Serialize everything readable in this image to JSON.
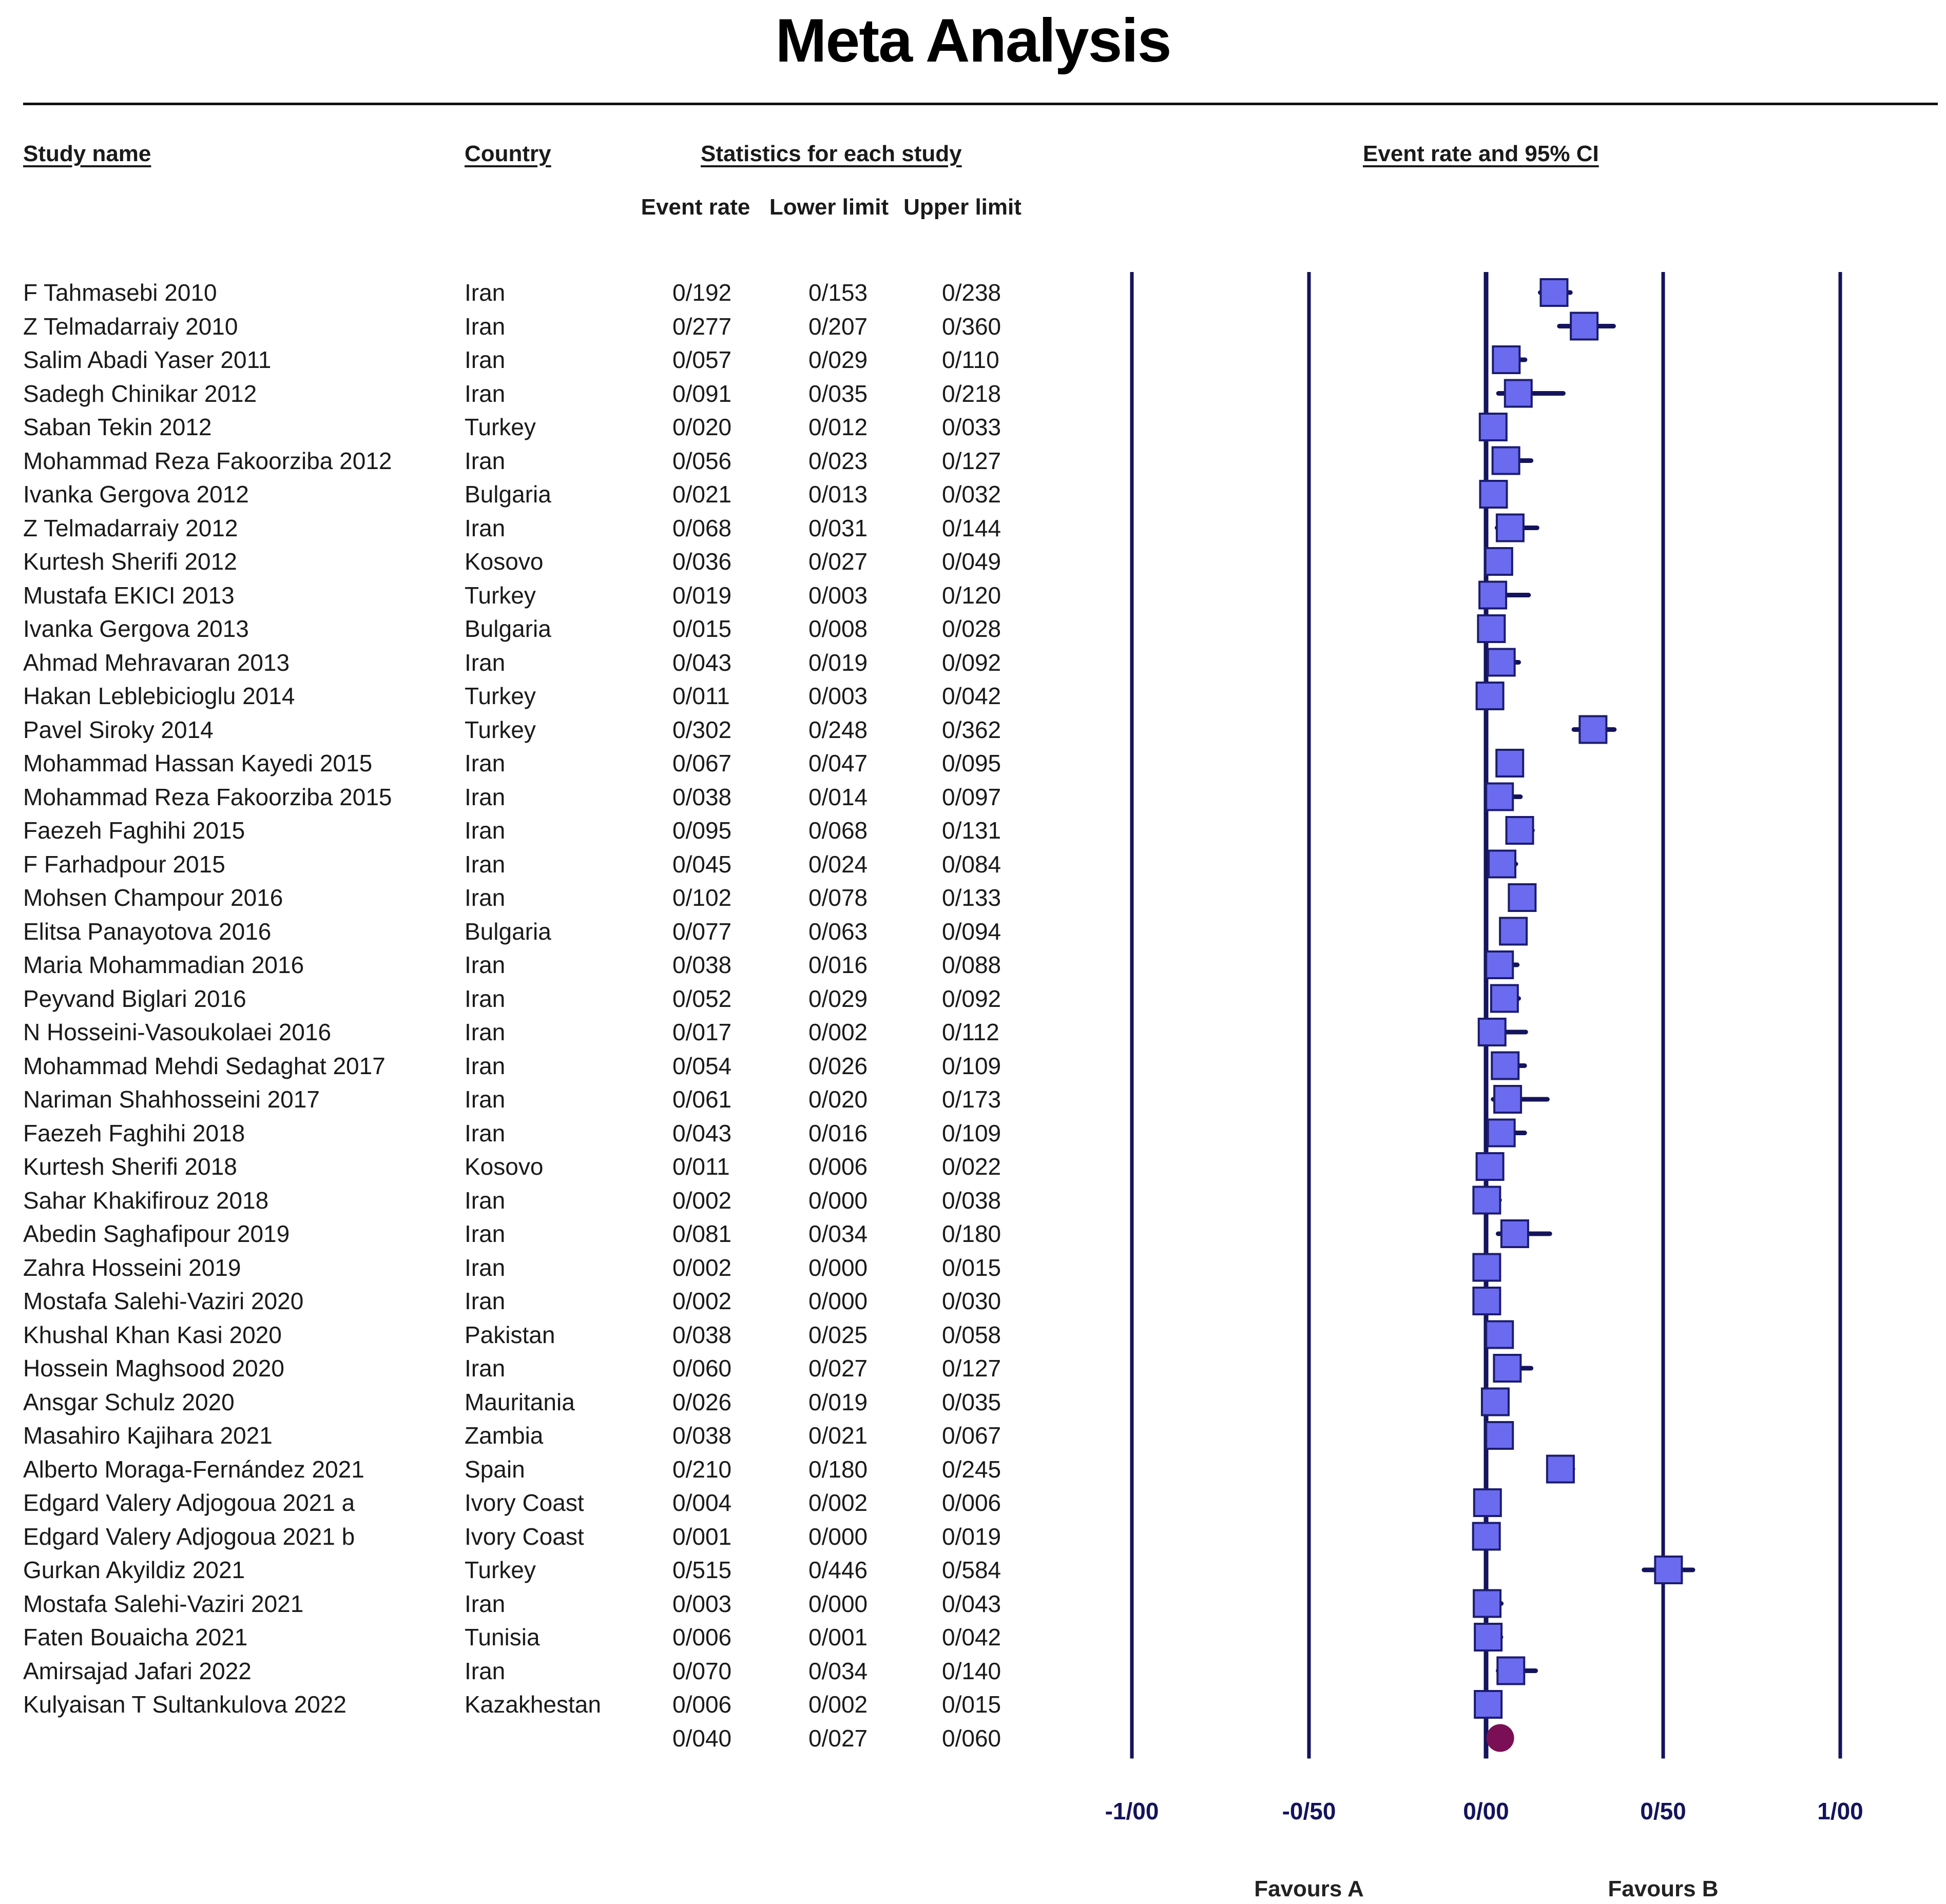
{
  "title": "Meta Analysis",
  "headers": {
    "study": "Study name",
    "country": "Country",
    "stats": "Statistics for each study",
    "plot": "Event rate and 95% CI",
    "event_rate": "Event rate",
    "lower_limit": "Lower limit",
    "upper_limit": "Upper limit"
  },
  "rows": [
    {
      "study": "F Tahmasebi 2010",
      "country": "Iran",
      "rate": "0/192",
      "lower": "0/153",
      "upper": "0/238"
    },
    {
      "study": "Z Telmadarraiy 2010",
      "country": "Iran",
      "rate": "0/277",
      "lower": "0/207",
      "upper": "0/360"
    },
    {
      "study": "Salim Abadi Yaser 2011",
      "country": "Iran",
      "rate": "0/057",
      "lower": "0/029",
      "upper": "0/110"
    },
    {
      "study": "Sadegh Chinikar 2012",
      "country": "Iran",
      "rate": "0/091",
      "lower": "0/035",
      "upper": "0/218"
    },
    {
      "study": "Saban Tekin 2012",
      "country": "Turkey",
      "rate": "0/020",
      "lower": "0/012",
      "upper": "0/033"
    },
    {
      "study": "Mohammad Reza Fakoorziba 2012",
      "country": "Iran",
      "rate": "0/056",
      "lower": "0/023",
      "upper": "0/127"
    },
    {
      "study": "Ivanka Gergova 2012",
      "country": "Bulgaria",
      "rate": "0/021",
      "lower": "0/013",
      "upper": "0/032"
    },
    {
      "study": "Z Telmadarraiy 2012",
      "country": "Iran",
      "rate": "0/068",
      "lower": "0/031",
      "upper": "0/144"
    },
    {
      "study": "Kurtesh Sherifi 2012",
      "country": "Kosovo",
      "rate": "0/036",
      "lower": "0/027",
      "upper": "0/049"
    },
    {
      "study": "Mustafa EKICI 2013",
      "country": "Turkey",
      "rate": "0/019",
      "lower": "0/003",
      "upper": "0/120"
    },
    {
      "study": "Ivanka Gergova 2013",
      "country": "Bulgaria",
      "rate": "0/015",
      "lower": "0/008",
      "upper": "0/028"
    },
    {
      "study": "Ahmad Mehravaran 2013",
      "country": "Iran",
      "rate": "0/043",
      "lower": "0/019",
      "upper": "0/092"
    },
    {
      "study": "Hakan Leblebicioglu 2014",
      "country": "Turkey",
      "rate": "0/011",
      "lower": "0/003",
      "upper": "0/042"
    },
    {
      "study": "Pavel Siroky 2014",
      "country": "Turkey",
      "rate": "0/302",
      "lower": "0/248",
      "upper": "0/362"
    },
    {
      "study": "Mohammad Hassan Kayedi 2015",
      "country": "Iran",
      "rate": "0/067",
      "lower": "0/047",
      "upper": "0/095"
    },
    {
      "study": "Mohammad Reza Fakoorziba 2015",
      "country": "Iran",
      "rate": "0/038",
      "lower": "0/014",
      "upper": "0/097"
    },
    {
      "study": "Faezeh Faghihi 2015",
      "country": "Iran",
      "rate": "0/095",
      "lower": "0/068",
      "upper": "0/131"
    },
    {
      "study": "F Farhadpour 2015",
      "country": "Iran",
      "rate": "0/045",
      "lower": "0/024",
      "upper": "0/084"
    },
    {
      "study": "Mohsen Champour 2016",
      "country": "Iran",
      "rate": "0/102",
      "lower": "0/078",
      "upper": "0/133"
    },
    {
      "study": "Elitsa Panayotova 2016",
      "country": "Bulgaria",
      "rate": "0/077",
      "lower": "0/063",
      "upper": "0/094"
    },
    {
      "study": "Maria Mohammadian 2016",
      "country": "Iran",
      "rate": "0/038",
      "lower": "0/016",
      "upper": "0/088"
    },
    {
      "study": "Peyvand Biglari 2016",
      "country": "Iran",
      "rate": "0/052",
      "lower": "0/029",
      "upper": "0/092"
    },
    {
      "study": "N Hosseini-Vasoukolaei 2016",
      "country": "Iran",
      "rate": "0/017",
      "lower": "0/002",
      "upper": "0/112"
    },
    {
      "study": "Mohammad Mehdi Sedaghat 2017",
      "country": "Iran",
      "rate": "0/054",
      "lower": "0/026",
      "upper": "0/109"
    },
    {
      "study": "Nariman Shahhosseini 2017",
      "country": "Iran",
      "rate": "0/061",
      "lower": "0/020",
      "upper": "0/173"
    },
    {
      "study": "Faezeh Faghihi 2018",
      "country": "Iran",
      "rate": "0/043",
      "lower": "0/016",
      "upper": "0/109"
    },
    {
      "study": "Kurtesh Sherifi 2018",
      "country": "Kosovo",
      "rate": "0/011",
      "lower": "0/006",
      "upper": "0/022"
    },
    {
      "study": "Sahar Khakifirouz 2018",
      "country": "Iran",
      "rate": "0/002",
      "lower": "0/000",
      "upper": "0/038"
    },
    {
      "study": "Abedin Saghafipour 2019",
      "country": "Iran",
      "rate": "0/081",
      "lower": "0/034",
      "upper": "0/180"
    },
    {
      "study": "Zahra Hosseini 2019",
      "country": "Iran",
      "rate": "0/002",
      "lower": "0/000",
      "upper": "0/015"
    },
    {
      "study": "Mostafa Salehi-Vaziri 2020",
      "country": "Iran",
      "rate": "0/002",
      "lower": "0/000",
      "upper": "0/030"
    },
    {
      "study": "Khushal Khan Kasi 2020",
      "country": "Pakistan",
      "rate": "0/038",
      "lower": "0/025",
      "upper": "0/058"
    },
    {
      "study": "Hossein Maghsood 2020",
      "country": "Iran",
      "rate": "0/060",
      "lower": "0/027",
      "upper": "0/127"
    },
    {
      "study": "Ansgar Schulz 2020",
      "country": "Mauritania",
      "rate": "0/026",
      "lower": "0/019",
      "upper": "0/035"
    },
    {
      "study": "Masahiro Kajihara 2021",
      "country": "Zambia",
      "rate": "0/038",
      "lower": "0/021",
      "upper": "0/067"
    },
    {
      "study": "Alberto Moraga-Fernández 2021",
      "country": "Spain",
      "rate": "0/210",
      "lower": "0/180",
      "upper": "0/245"
    },
    {
      "study": "Edgard Valery Adjogoua 2021 a",
      "country": "Ivory Coast",
      "rate": "0/004",
      "lower": "0/002",
      "upper": "0/006"
    },
    {
      "study": "Edgard Valery Adjogoua 2021 b",
      "country": "Ivory Coast",
      "rate": "0/001",
      "lower": "0/000",
      "upper": "0/019"
    },
    {
      "study": "Gurkan Akyildiz 2021",
      "country": "Turkey",
      "rate": "0/515",
      "lower": "0/446",
      "upper": "0/584"
    },
    {
      "study": "Mostafa Salehi-Vaziri 2021",
      "country": "Iran",
      "rate": "0/003",
      "lower": "0/000",
      "upper": "0/043"
    },
    {
      "study": "Faten Bouaicha 2021",
      "country": "Tunisia",
      "rate": "0/006",
      "lower": "0/001",
      "upper": "0/042"
    },
    {
      "study": "Amirsajad Jafari 2022",
      "country": "Iran",
      "rate": "0/070",
      "lower": "0/034",
      "upper": "0/140"
    },
    {
      "study": "Kulyaisan T Sultankulova 2022",
      "country": "Kazakhestan",
      "rate": "0/006",
      "lower": "0/002",
      "upper": "0/015"
    }
  ],
  "pooled": {
    "rate": "0/040",
    "lower": "0/027",
    "upper": "0/060"
  },
  "axis": {
    "ticks": [
      "-1/00",
      "-0/50",
      "0/00",
      "0/50",
      "1/00"
    ],
    "favours_a": "Favours A",
    "favours_b": "Favours B"
  },
  "colors": {
    "line": "#14145c",
    "box": "#6b6bf0",
    "box_border": "#1c1c6e",
    "pooled": "#7a0f55"
  },
  "chart_data": {
    "type": "forest",
    "title": "Meta Analysis",
    "xlabel": "Event rate and 95% CI",
    "xlim": [
      -1.0,
      1.0
    ],
    "xticks": [
      -1.0,
      -0.5,
      0.0,
      0.5,
      1.0
    ],
    "studies": [
      {
        "name": "F Tahmasebi 2010",
        "rate": 0.192,
        "lower": 0.153,
        "upper": 0.238
      },
      {
        "name": "Z Telmadarraiy 2010",
        "rate": 0.277,
        "lower": 0.207,
        "upper": 0.36
      },
      {
        "name": "Salim Abadi Yaser 2011",
        "rate": 0.057,
        "lower": 0.029,
        "upper": 0.11
      },
      {
        "name": "Sadegh Chinikar 2012",
        "rate": 0.091,
        "lower": 0.035,
        "upper": 0.218
      },
      {
        "name": "Saban Tekin 2012",
        "rate": 0.02,
        "lower": 0.012,
        "upper": 0.033
      },
      {
        "name": "Mohammad Reza Fakoorziba 2012",
        "rate": 0.056,
        "lower": 0.023,
        "upper": 0.127
      },
      {
        "name": "Ivanka Gergova 2012",
        "rate": 0.021,
        "lower": 0.013,
        "upper": 0.032
      },
      {
        "name": "Z Telmadarraiy 2012",
        "rate": 0.068,
        "lower": 0.031,
        "upper": 0.144
      },
      {
        "name": "Kurtesh Sherifi 2012",
        "rate": 0.036,
        "lower": 0.027,
        "upper": 0.049
      },
      {
        "name": "Mustafa EKICI 2013",
        "rate": 0.019,
        "lower": 0.003,
        "upper": 0.12
      },
      {
        "name": "Ivanka Gergova 2013",
        "rate": 0.015,
        "lower": 0.008,
        "upper": 0.028
      },
      {
        "name": "Ahmad Mehravaran 2013",
        "rate": 0.043,
        "lower": 0.019,
        "upper": 0.092
      },
      {
        "name": "Hakan Leblebicioglu 2014",
        "rate": 0.011,
        "lower": 0.003,
        "upper": 0.042
      },
      {
        "name": "Pavel Siroky 2014",
        "rate": 0.302,
        "lower": 0.248,
        "upper": 0.362
      },
      {
        "name": "Mohammad Hassan Kayedi 2015",
        "rate": 0.067,
        "lower": 0.047,
        "upper": 0.095
      },
      {
        "name": "Mohammad Reza Fakoorziba 2015",
        "rate": 0.038,
        "lower": 0.014,
        "upper": 0.097
      },
      {
        "name": "Faezeh Faghihi 2015",
        "rate": 0.095,
        "lower": 0.068,
        "upper": 0.131
      },
      {
        "name": "F Farhadpour 2015",
        "rate": 0.045,
        "lower": 0.024,
        "upper": 0.084
      },
      {
        "name": "Mohsen Champour 2016",
        "rate": 0.102,
        "lower": 0.078,
        "upper": 0.133
      },
      {
        "name": "Elitsa Panayotova 2016",
        "rate": 0.077,
        "lower": 0.063,
        "upper": 0.094
      },
      {
        "name": "Maria Mohammadian 2016",
        "rate": 0.038,
        "lower": 0.016,
        "upper": 0.088
      },
      {
        "name": "Peyvand Biglari 2016",
        "rate": 0.052,
        "lower": 0.029,
        "upper": 0.092
      },
      {
        "name": "N Hosseini-Vasoukolaei 2016",
        "rate": 0.017,
        "lower": 0.002,
        "upper": 0.112
      },
      {
        "name": "Mohammad Mehdi Sedaghat 2017",
        "rate": 0.054,
        "lower": 0.026,
        "upper": 0.109
      },
      {
        "name": "Nariman Shahhosseini 2017",
        "rate": 0.061,
        "lower": 0.02,
        "upper": 0.173
      },
      {
        "name": "Faezeh Faghihi 2018",
        "rate": 0.043,
        "lower": 0.016,
        "upper": 0.109
      },
      {
        "name": "Kurtesh Sherifi 2018",
        "rate": 0.011,
        "lower": 0.006,
        "upper": 0.022
      },
      {
        "name": "Sahar Khakifirouz 2018",
        "rate": 0.002,
        "lower": 0.0,
        "upper": 0.038
      },
      {
        "name": "Abedin Saghafipour 2019",
        "rate": 0.081,
        "lower": 0.034,
        "upper": 0.18
      },
      {
        "name": "Zahra Hosseini 2019",
        "rate": 0.002,
        "lower": 0.0,
        "upper": 0.015
      },
      {
        "name": "Mostafa Salehi-Vaziri 2020",
        "rate": 0.002,
        "lower": 0.0,
        "upper": 0.03
      },
      {
        "name": "Khushal Khan Kasi 2020",
        "rate": 0.038,
        "lower": 0.025,
        "upper": 0.058
      },
      {
        "name": "Hossein Maghsood 2020",
        "rate": 0.06,
        "lower": 0.027,
        "upper": 0.127
      },
      {
        "name": "Ansgar Schulz 2020",
        "rate": 0.026,
        "lower": 0.019,
        "upper": 0.035
      },
      {
        "name": "Masahiro Kajihara 2021",
        "rate": 0.038,
        "lower": 0.021,
        "upper": 0.067
      },
      {
        "name": "Alberto Moraga-Fernández 2021",
        "rate": 0.21,
        "lower": 0.18,
        "upper": 0.245
      },
      {
        "name": "Edgard Valery Adjogoua 2021 a",
        "rate": 0.004,
        "lower": 0.002,
        "upper": 0.006
      },
      {
        "name": "Edgard Valery Adjogoua 2021 b",
        "rate": 0.001,
        "lower": 0.0,
        "upper": 0.019
      },
      {
        "name": "Gurkan Akyildiz 2021",
        "rate": 0.515,
        "lower": 0.446,
        "upper": 0.584
      },
      {
        "name": "Mostafa Salehi-Vaziri 2021",
        "rate": 0.003,
        "lower": 0.0,
        "upper": 0.043
      },
      {
        "name": "Faten Bouaicha 2021",
        "rate": 0.006,
        "lower": 0.001,
        "upper": 0.042
      },
      {
        "name": "Amirsajad Jafari 2022",
        "rate": 0.07,
        "lower": 0.034,
        "upper": 0.14
      },
      {
        "name": "Kulyaisan T Sultankulova 2022",
        "rate": 0.006,
        "lower": 0.002,
        "upper": 0.015
      }
    ],
    "pooled": {
      "rate": 0.04,
      "lower": 0.027,
      "upper": 0.06
    },
    "favours": [
      "Favours A",
      "Favours B"
    ]
  }
}
